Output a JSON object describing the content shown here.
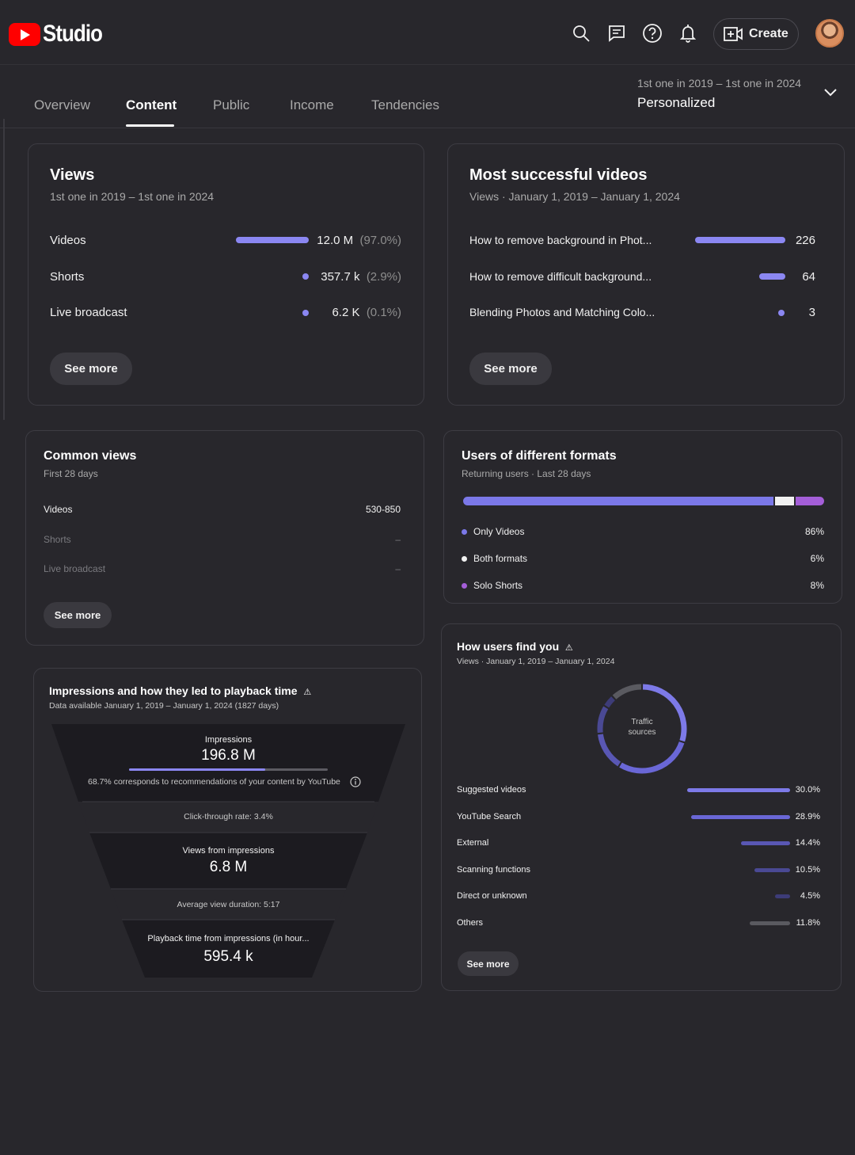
{
  "header": {
    "logo_text": "Studio",
    "create_label": "Create",
    "icons": [
      "search-icon",
      "feedback-icon",
      "help-icon",
      "notifications-icon",
      "create-video-icon"
    ]
  },
  "tabs": [
    {
      "label": "Overview"
    },
    {
      "label": "Content"
    },
    {
      "label": "Public"
    },
    {
      "label": "Income"
    },
    {
      "label": "Tendencies"
    }
  ],
  "date_picker": {
    "range": "1st one in 2019 – 1st one in 2024",
    "mode": "Personalized"
  },
  "views_card": {
    "title": "Views",
    "subtitle": "1st one in 2019 – 1st one in 2024",
    "rows": [
      {
        "label": "Videos",
        "value": "12.0 M",
        "pct": "(97.0%)",
        "fraction": 0.97
      },
      {
        "label": "Shorts",
        "value": "357.7 k",
        "pct": "(2.9%)",
        "fraction": 0.029
      },
      {
        "label": "Live broadcast",
        "value": "6.2 K",
        "pct": "(0.1%)",
        "fraction": 0.001
      }
    ],
    "see_more": "See more"
  },
  "top_videos_card": {
    "title": "Most successful videos",
    "subtitle": "Views · January 1, 2019 – January 1, 2024",
    "rows": [
      {
        "label": "How to remove background in Phot...",
        "value": "226"
      },
      {
        "label": "How to remove difficult background...",
        "value": "64"
      },
      {
        "label": "Blending Photos and Matching Colo...",
        "value": "3"
      }
    ],
    "see_more": "See more"
  },
  "common_views_card": {
    "title": "Common views",
    "subtitle": "First 28 days",
    "rows": [
      {
        "label": "Videos",
        "value": "530-850"
      },
      {
        "label": "Shorts",
        "value": "–"
      },
      {
        "label": "Live broadcast",
        "value": "–"
      }
    ],
    "see_more": "See more"
  },
  "formats_card": {
    "title": "Users of different formats",
    "subtitle": "Returning users · Last 28 days",
    "rows": [
      {
        "label": "Only Videos",
        "value": "86%",
        "fraction": 0.86,
        "color": "#7b78e8"
      },
      {
        "label": "Both formats",
        "value": "6%",
        "fraction": 0.06,
        "color": "#f1f1f1"
      },
      {
        "label": "Solo Shorts",
        "value": "8%",
        "fraction": 0.08,
        "color": "#a45ed8"
      }
    ]
  },
  "impressions_card": {
    "title": "Impressions and how they led to playback time",
    "subtitle": "Data available January 1, 2019 – January 1, 2024 (1827 days)",
    "impressions_label": "Impressions",
    "impressions_value": "196.8 M",
    "recommend_fraction": 0.687,
    "recommend_note": "68.7% corresponds to recommendations of your content by YouTube",
    "ctr": "Click-through rate: 3.4%",
    "views_label": "Views from impressions",
    "views_value": "6.8 M",
    "avg_duration": "Average view duration: 5:17",
    "playback_label": "Playback time from impressions (in hour...",
    "playback_value": "595.4 k"
  },
  "traffic_card": {
    "title": "How users find you",
    "subtitle": "Views · January 1, 2019 – January 1, 2024",
    "donut_label_1": "Traffic",
    "donut_label_2": "sources",
    "rows": [
      {
        "label": "Suggested videos",
        "value": "30.0%",
        "fraction": 0.3,
        "color": "#7d7ae8"
      },
      {
        "label": "YouTube Search",
        "value": "28.9%",
        "fraction": 0.289,
        "color": "#6a67d6"
      },
      {
        "label": "External",
        "value": "14.4%",
        "fraction": 0.144,
        "color": "#5957b4"
      },
      {
        "label": "Scanning functions",
        "value": "10.5%",
        "fraction": 0.105,
        "color": "#4a4994"
      },
      {
        "label": "Direct or unknown",
        "value": "4.5%",
        "fraction": 0.045,
        "color": "#3d3c78"
      },
      {
        "label": "Others",
        "value": "11.8%",
        "fraction": 0.118,
        "color": "#5a5a60"
      }
    ],
    "see_more": "See more"
  }
}
